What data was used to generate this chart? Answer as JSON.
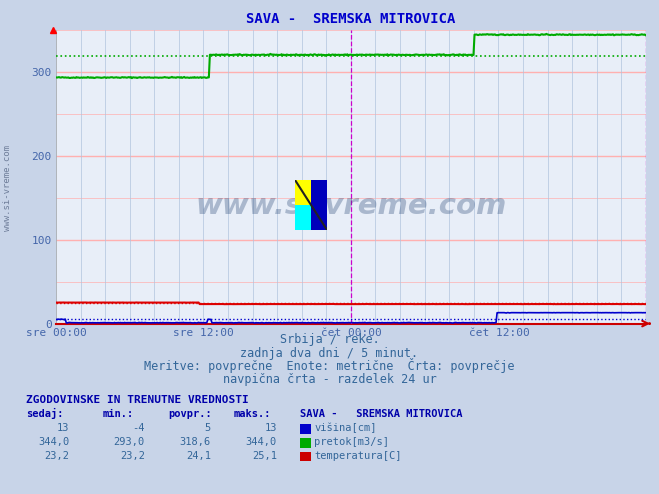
{
  "title": "SAVA -  SREMSKA MITROVICA",
  "title_color": "#0000cc",
  "bg_color": "#c8d4e8",
  "plot_bg_color": "#e8eef8",
  "grid_color_h": "#ffb0b0",
  "grid_color_v": "#b0c4dd",
  "ylabel_color": "#4466aa",
  "xlabel_color": "#4466aa",
  "xlabels": [
    "sre 00:00",
    "sre 12:00",
    "čet 00:00",
    "čet 12:00"
  ],
  "yticks": [
    0,
    100,
    200,
    300
  ],
  "ymax": 350,
  "ymin": 0,
  "n_points": 576,
  "pretok_color": "#00aa00",
  "visina_color": "#0000cc",
  "temp_color": "#dd0000",
  "pretok_avg": 318.6,
  "visina_avg": 5,
  "temp_avg": 24.1,
  "subtitle1": "Srbija / reke.",
  "subtitle2": "zadnja dva dni / 5 minut.",
  "subtitle3": "Meritve: povprečne  Enote: metrične  Črta: povprečje",
  "subtitle4": "navpična črta - razdelek 24 ur",
  "table_header": "ZGODOVINSKE IN TRENUTNE VREDNOSTI",
  "col_headers": [
    "sedaj:",
    "min.:",
    "povpr.:",
    "maks.:",
    "SAVA -   SREMSKA MITROVICA"
  ],
  "row1": [
    "13",
    "-4",
    "5",
    "13",
    "višina[cm]"
  ],
  "row2": [
    "344,0",
    "293,0",
    "318,6",
    "344,0",
    "pretok[m3/s]"
  ],
  "row3": [
    "23,2",
    "23,2",
    "24,1",
    "25,1",
    "temperatura[C]"
  ],
  "box_colors": [
    "#0000cc",
    "#00aa00",
    "#cc0000"
  ],
  "watermark": "www.si-vreme.com",
  "watermark_color": "#1a3a6a",
  "side_text": "www.si-vreme.com"
}
